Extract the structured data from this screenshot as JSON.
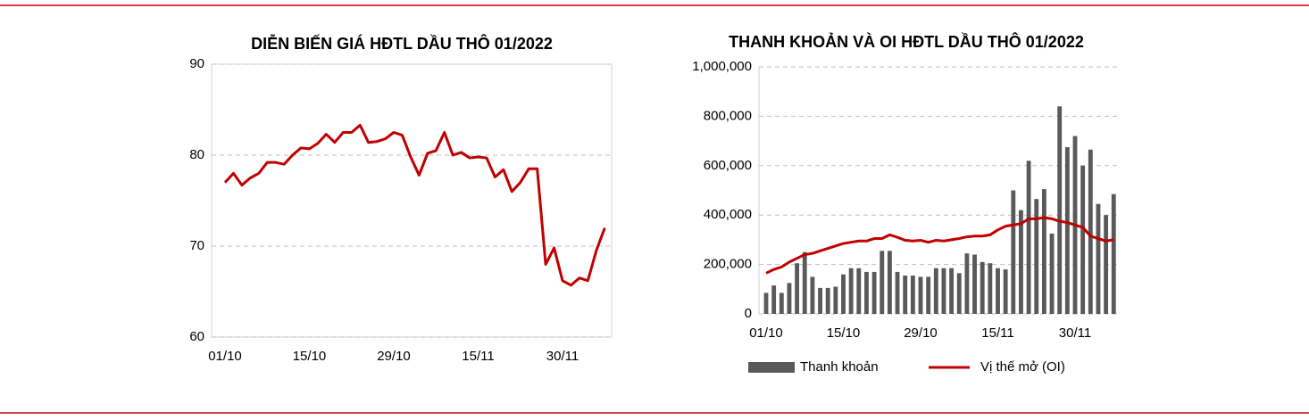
{
  "chart_data": [
    {
      "type": "line",
      "title": "DIỄN BIẾN GIÁ HĐTL DẦU THÔ 01/2022",
      "categories": [
        "01/10",
        null,
        null,
        null,
        null,
        null,
        null,
        null,
        null,
        null,
        "15/10",
        null,
        null,
        null,
        null,
        null,
        null,
        null,
        null,
        null,
        "29/10",
        null,
        null,
        null,
        null,
        null,
        null,
        null,
        null,
        null,
        "15/11",
        null,
        null,
        null,
        null,
        null,
        null,
        null,
        null,
        null,
        "30/11",
        null,
        null,
        null,
        null,
        null
      ],
      "series": [
        {
          "color": "#c00000",
          "values": [
            77,
            78,
            76.7,
            77.5,
            78,
            79.2,
            79.2,
            79,
            80,
            80.8,
            80.7,
            81.3,
            82.3,
            81.4,
            82.5,
            82.5,
            83.3,
            81.4,
            81.5,
            81.8,
            82.5,
            82.2,
            79.8,
            77.8,
            80.2,
            80.5,
            82.5,
            80,
            80.3,
            79.7,
            79.8,
            79.7,
            77.6,
            78.4,
            76,
            77,
            78.5,
            78.5,
            68,
            69.8,
            66.2,
            65.7,
            66.5,
            66.2,
            69.5,
            72
          ]
        }
      ],
      "ylim": [
        60,
        90
      ],
      "yticks": [
        60,
        70,
        80,
        90
      ],
      "grid": true
    },
    {
      "type": "combo",
      "title": "THANH KHOẢN VÀ OI HĐTL DẦU THÔ 01/2022",
      "categories": [
        "01/10",
        null,
        null,
        null,
        null,
        null,
        null,
        null,
        null,
        null,
        "15/10",
        null,
        null,
        null,
        null,
        null,
        null,
        null,
        null,
        null,
        "29/10",
        null,
        null,
        null,
        null,
        null,
        null,
        null,
        null,
        null,
        "15/11",
        null,
        null,
        null,
        null,
        null,
        null,
        null,
        null,
        null,
        "30/11",
        null,
        null,
        null,
        null,
        null
      ],
      "series": [
        {
          "name": "Thanh khoản",
          "type": "bar",
          "color": "#595959",
          "values": [
            85000,
            115000,
            85000,
            125000,
            205000,
            250000,
            150000,
            105000,
            105000,
            110000,
            160000,
            185000,
            185000,
            170000,
            170000,
            255000,
            255000,
            170000,
            155000,
            155000,
            150000,
            150000,
            185000,
            185000,
            185000,
            165000,
            245000,
            240000,
            210000,
            205000,
            185000,
            180000,
            500000,
            420000,
            620000,
            465000,
            505000,
            325000,
            840000,
            675000,
            720000,
            600000,
            665000,
            445000,
            400000,
            485000
          ]
        },
        {
          "name": "Vị thế mở (OI)",
          "type": "line",
          "color": "#c00000",
          "values": [
            165000,
            180000,
            190000,
            210000,
            225000,
            240000,
            245000,
            255000,
            265000,
            275000,
            285000,
            290000,
            295000,
            295000,
            305000,
            305000,
            320000,
            310000,
            298000,
            295000,
            298000,
            290000,
            298000,
            295000,
            300000,
            305000,
            312000,
            315000,
            315000,
            320000,
            340000,
            355000,
            360000,
            365000,
            385000,
            385000,
            390000,
            385000,
            375000,
            370000,
            360000,
            350000,
            315000,
            305000,
            295000,
            300000
          ]
        }
      ],
      "ylim": [
        0,
        1000000
      ],
      "yticks": [
        0,
        {
          "value": 200000,
          "label": "200,000"
        },
        {
          "value": 400000,
          "label": "400,000"
        },
        {
          "value": 600000,
          "label": "600,000"
        },
        {
          "value": 800000,
          "label": "800,000"
        },
        {
          "value": 1000000,
          "label": "1,000,000"
        }
      ],
      "grid": true
    }
  ]
}
